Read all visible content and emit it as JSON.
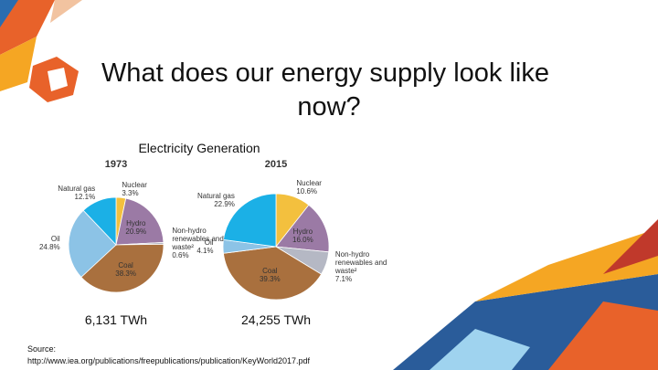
{
  "slide": {
    "title": "What does our energy supply look like now?",
    "subtitle": "Electricity Generation",
    "source": "Source: http://www.iea.org/publications/freepublications/publication/KeyWorld2017.pdf"
  },
  "chart_data": [
    {
      "type": "pie",
      "title": "1973",
      "caption": "6,131 TWh",
      "categories": [
        "Nuclear",
        "Hydro",
        "Non-hydro renewables and waste²",
        "Coal",
        "Oil",
        "Natural gas"
      ],
      "values": [
        3.3,
        20.9,
        0.6,
        38.3,
        24.8,
        12.1
      ],
      "value_labels": [
        "3.3%",
        "20.9%",
        "0.6%",
        "38.3%",
        "24.8%",
        "12.1%"
      ],
      "colors": [
        "#f3c03e",
        "#9b7aa5",
        "#b5b8c4",
        "#a9703e",
        "#8cc3e6",
        "#1bb0e6"
      ]
    },
    {
      "type": "pie",
      "title": "2015",
      "caption": "24,255 TWh",
      "categories": [
        "Nuclear",
        "Hydro",
        "Non-hydro renewables and waste²",
        "Coal",
        "Oil",
        "Natural gas"
      ],
      "values": [
        10.6,
        16.0,
        7.1,
        39.3,
        4.1,
        22.9
      ],
      "value_labels": [
        "10.6%",
        "16.0%",
        "7.1%",
        "39.3%",
        "4.1%",
        "22.9%"
      ],
      "colors": [
        "#f3c03e",
        "#9b7aa5",
        "#b5b8c4",
        "#a9703e",
        "#8cc3e6",
        "#1bb0e6"
      ]
    }
  ]
}
